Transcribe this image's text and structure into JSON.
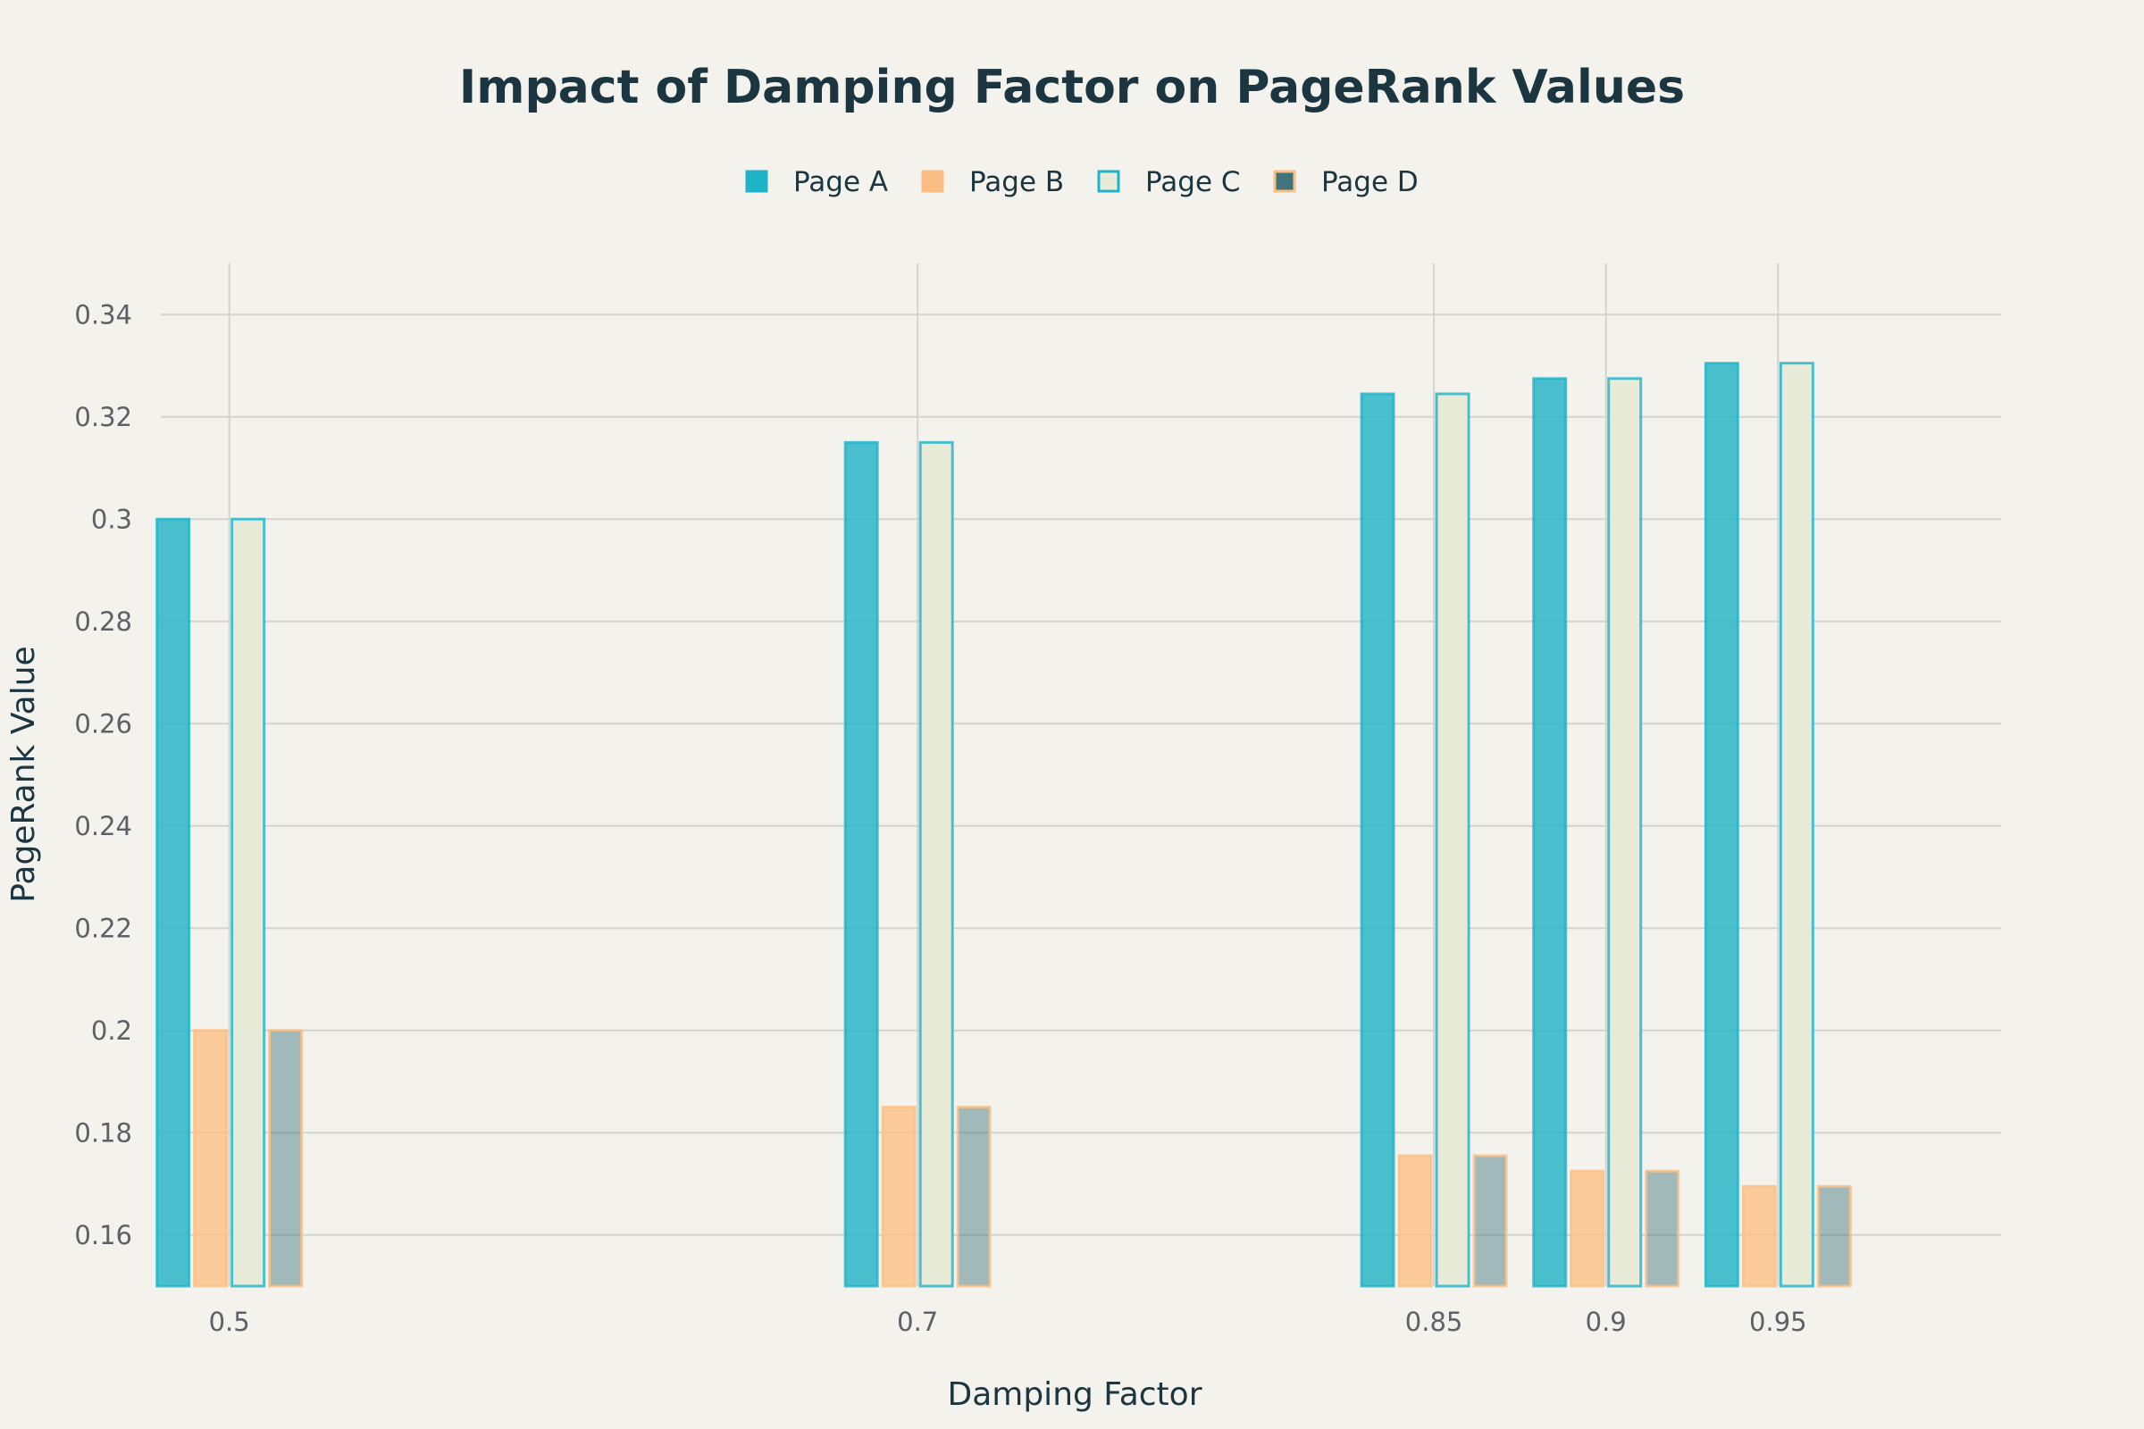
{
  "chart_data": {
    "type": "bar",
    "title": "Impact of Damping Factor on PageRank Values",
    "xlabel": "Damping Factor",
    "ylabel": "PageRank Value",
    "x": [
      0.5,
      0.7,
      0.85,
      0.9,
      0.95
    ],
    "x_tick_labels": [
      "0.5",
      "0.7",
      "0.85",
      "0.9",
      "0.95"
    ],
    "ylim": [
      0.15,
      0.35
    ],
    "y_ticks": [
      0.16,
      0.18,
      0.2,
      0.22,
      0.24,
      0.26,
      0.28,
      0.3,
      0.32,
      0.34
    ],
    "y_tick_labels": [
      "0.16",
      "0.18",
      "0.2",
      "0.22",
      "0.24",
      "0.26",
      "0.28",
      "0.3",
      "0.32",
      "0.34"
    ],
    "grid": true,
    "legend_position": "top-center",
    "series": [
      {
        "name": "Page A",
        "values": [
          0.3,
          0.315,
          0.3245,
          0.3275,
          0.3305
        ],
        "fill": "#1fb3c8",
        "stroke": "#1fb3c8",
        "fill_opacity": 0.8
      },
      {
        "name": "Page B",
        "values": [
          0.2,
          0.185,
          0.1755,
          0.1725,
          0.1695
        ],
        "fill": "#fbbf86",
        "stroke": "#fbbf86",
        "fill_opacity": 0.8
      },
      {
        "name": "Page C",
        "values": [
          0.3,
          0.315,
          0.3245,
          0.3275,
          0.3305
        ],
        "fill": "#e9ebd9",
        "stroke": "#1fb3c8",
        "fill_opacity": 1
      },
      {
        "name": "Page D",
        "values": [
          0.2,
          0.185,
          0.1755,
          0.1725,
          0.1695
        ],
        "fill": "#41737c",
        "stroke": "#fbbf86",
        "fill_opacity": 0.45
      }
    ]
  }
}
